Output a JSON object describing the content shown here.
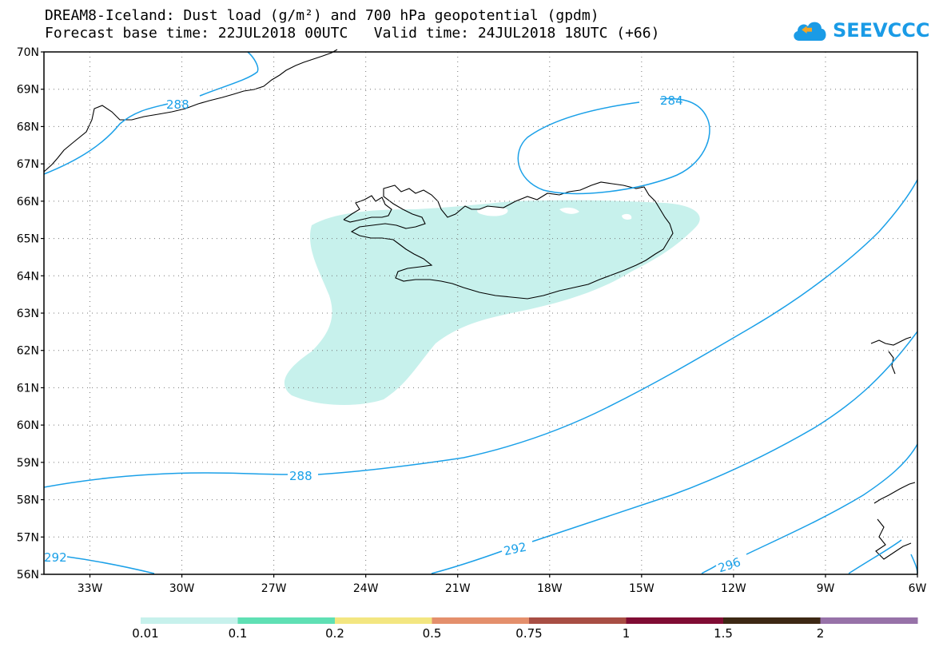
{
  "title": {
    "line1": "DREAM8-Iceland: Dust load (g/m²) and 700 hPa geopotential (gpdm)",
    "line2": "Forecast base time: 22JUL2018 00UTC   Valid time: 24JUL2018 18UTC (+66)"
  },
  "logo": {
    "text": "SEEVCCC",
    "icon": "cloud-icon",
    "color": "#1a9be6"
  },
  "map": {
    "lat_labels": [
      "70N",
      "69N",
      "68N",
      "67N",
      "66N",
      "65N",
      "64N",
      "63N",
      "62N",
      "61N",
      "60N",
      "59N",
      "58N",
      "57N",
      "56N"
    ],
    "lon_labels": [
      "33W",
      "30W",
      "27W",
      "24W",
      "21W",
      "18W",
      "15W",
      "12W",
      "9W",
      "6W"
    ],
    "lat_range": [
      56,
      70
    ],
    "lon_range": [
      -34.5,
      -6
    ],
    "grid": "dotted",
    "contours": [
      {
        "value": "288",
        "label_count": 2
      },
      {
        "value": "284",
        "label_count": 1
      },
      {
        "value": "292",
        "label_count": 2
      },
      {
        "value": "296",
        "label_count": 1
      }
    ],
    "contour_color": "#1aa0e8",
    "dust_fill_color": "#c7f1ec",
    "coast_color": "#000000"
  },
  "legend": {
    "colors": [
      "#c7f1ec",
      "#5fe0b4",
      "#f3e681",
      "#e48f6c",
      "#a84e44",
      "#800c34",
      "#3d2814",
      "#9772a8"
    ],
    "labels": [
      "0.01",
      "0.1",
      "0.2",
      "0.5",
      "0.75",
      "1",
      "1.5",
      "2"
    ]
  }
}
